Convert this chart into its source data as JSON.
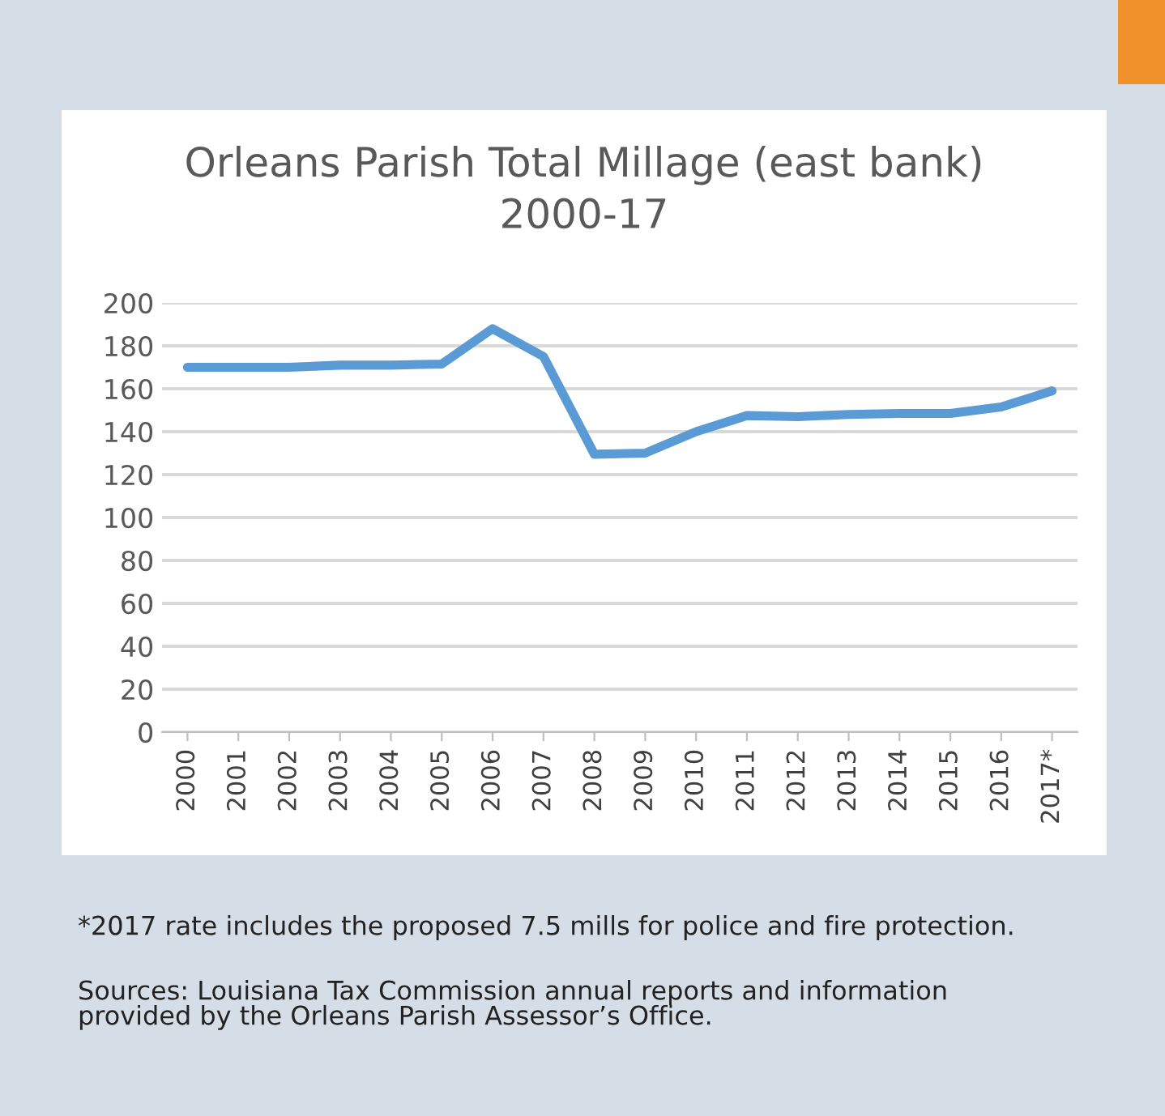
{
  "chart_data": {
    "type": "line",
    "title": "Orleans Parish Total Millage (east bank)\n2000-17",
    "categories": [
      "2000",
      "2001",
      "2002",
      "2003",
      "2004",
      "2005",
      "2006",
      "2007",
      "2008",
      "2009",
      "2010",
      "2011",
      "2012",
      "2013",
      "2014",
      "2015",
      "2016",
      "2017*"
    ],
    "series": [
      {
        "color": "#5b9bd5",
        "values": [
          170,
          170,
          170,
          171,
          171,
          171.5,
          188,
          175,
          129.5,
          130,
          140,
          147.5,
          147,
          148,
          148.5,
          148.5,
          151.5,
          159
        ]
      }
    ],
    "ylim": [
      0,
      200
    ],
    "yticks": [
      0,
      20,
      40,
      60,
      80,
      100,
      120,
      140,
      160,
      180,
      200
    ],
    "grid": "y",
    "legend": false,
    "marker": "none",
    "line_style": "solid",
    "annotations": [
      "*2017 rate includes the proposed 7.5 mills for police and fire protection.",
      "Sources: Louisiana Tax Commission annual reports and information\nprovided by the Orleans Parish Assessor’s Office."
    ]
  }
}
